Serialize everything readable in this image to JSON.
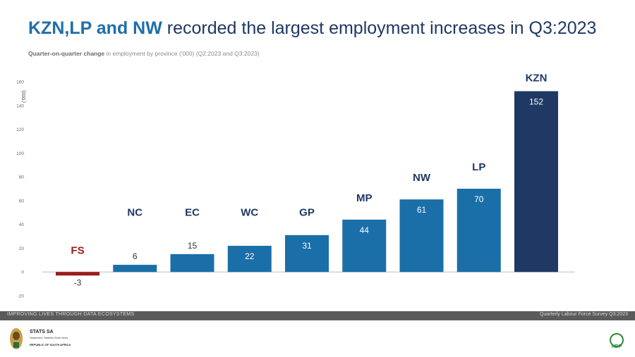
{
  "title": {
    "highlight": "KZN,LP and NW",
    "rest": "recorded the largest employment increases in Q3:2023"
  },
  "subtitle": {
    "bold": "Quarter-on-quarter change",
    "rest": "in employment by province ('000) (Q2:2023 and Q3:2023)"
  },
  "footer": {
    "left": "IMPROVING LIVES THROUGH DATA ECOSYSTEMS",
    "right": "Quarterly Labour Force Survey Q3:2023"
  },
  "logo": {
    "org": "STATS SA",
    "dept": "Department: Statistics South Africa",
    "country": "REPUBLIC OF SOUTH AFRICA",
    "ndp": "NDP"
  },
  "colors": {
    "positive": "#1a6fa8",
    "negative": "#9b1b1b",
    "max": "#1f3864",
    "footer": "#5b5b5b"
  },
  "chart_data": {
    "type": "bar",
    "categories": [
      "FS",
      "NC",
      "EC",
      "WC",
      "GP",
      "MP",
      "NW",
      "LP",
      "KZN"
    ],
    "values": [
      -3,
      6,
      15,
      22,
      31,
      44,
      61,
      70,
      152
    ],
    "ylabel": "('000)",
    "ylim": [
      -20,
      160
    ],
    "yticks": [
      -20,
      0,
      20,
      40,
      60,
      80,
      100,
      120,
      140,
      160
    ],
    "grid": false,
    "legend": "none"
  }
}
